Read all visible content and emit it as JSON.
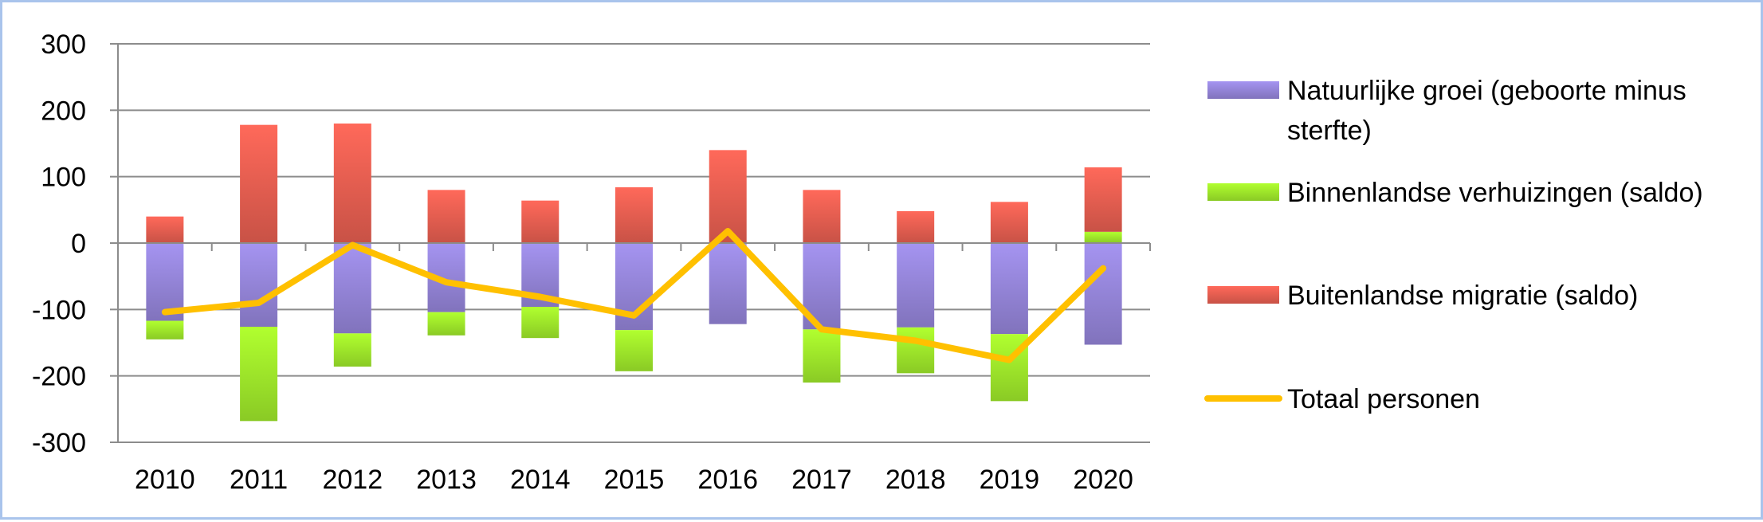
{
  "chart_data": {
    "type": "bar",
    "stacked": true,
    "title": "",
    "xlabel": "",
    "ylabel": "",
    "ylim": [
      -300,
      300
    ],
    "yticks": [
      300,
      200,
      100,
      0,
      -100,
      -200,
      -300
    ],
    "grid": true,
    "legend_position": "right",
    "categories": [
      "2010",
      "2011",
      "2012",
      "2013",
      "2014",
      "2015",
      "2016",
      "2017",
      "2018",
      "2019",
      "2020"
    ],
    "series": [
      {
        "name": "Natuurlijke groei (geboorte minus sterfte)",
        "kind": "bar",
        "color": "#8c7dcc",
        "values": [
          -117,
          -126,
          -136,
          -104,
          -96,
          -131,
          -122,
          -130,
          -127,
          -137,
          -153
        ]
      },
      {
        "name": "Binnenlandse verhuizingen (saldo)",
        "kind": "bar",
        "color": "#96dc28",
        "values": [
          -28,
          -142,
          -50,
          -35,
          -47,
          -62,
          0,
          -80,
          -69,
          -101,
          17
        ]
      },
      {
        "name": "Buitenlandse migratie (saldo)",
        "kind": "bar",
        "color": "#d9594c",
        "values": [
          40,
          178,
          180,
          80,
          64,
          84,
          140,
          80,
          48,
          62,
          97
        ]
      },
      {
        "name": "Totaal personen",
        "kind": "line",
        "color": "#ffc000",
        "values": [
          -104,
          -90,
          -3,
          -59,
          -81,
          -109,
          18,
          -130,
          -147,
          -176,
          -38
        ]
      }
    ]
  },
  "legend": {
    "items": [
      {
        "lines": [
          "Natuurlijke groei (geboorte minus",
          "sterfte)"
        ],
        "series_index": 0
      },
      {
        "lines": [
          "Binnenlandse verhuizingen (saldo)"
        ],
        "series_index": 1
      },
      {
        "lines": [
          "Buitenlandse migratie (saldo)"
        ],
        "series_index": 2
      },
      {
        "lines": [
          "Totaal personen"
        ],
        "series_index": 3
      }
    ]
  }
}
